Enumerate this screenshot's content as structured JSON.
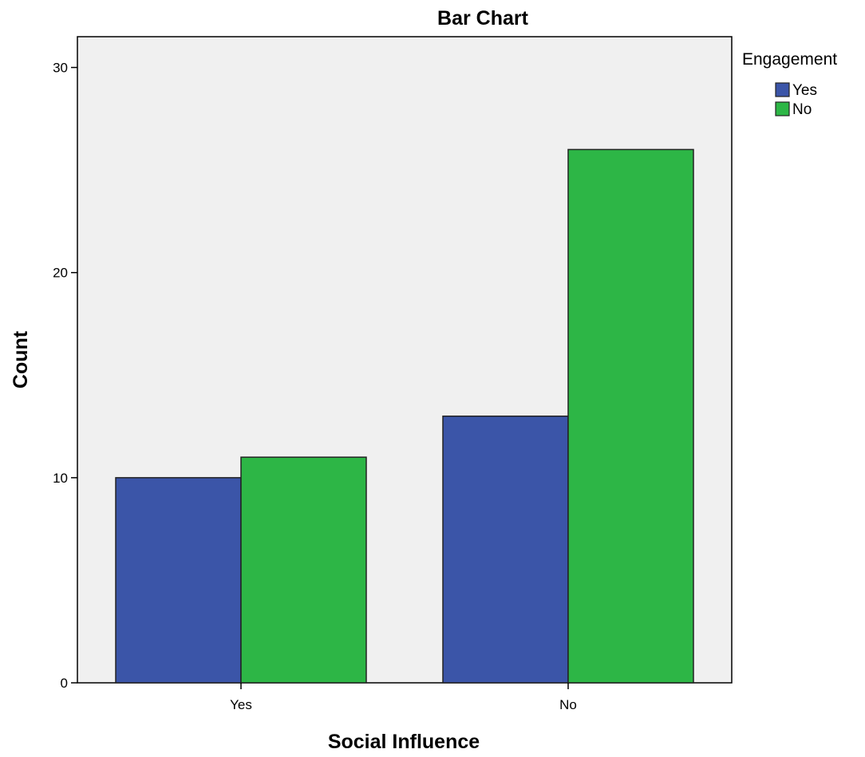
{
  "chart_data": {
    "type": "bar",
    "title": "Bar Chart",
    "xlabel": "Social Influence",
    "ylabel": "Count",
    "categories": [
      "Yes",
      "No"
    ],
    "series": [
      {
        "name": "Yes",
        "values": [
          10,
          13
        ],
        "color": "#3b55a8"
      },
      {
        "name": "No",
        "values": [
          11,
          26
        ],
        "color": "#2db646"
      }
    ],
    "ylim": [
      0,
      31.5
    ],
    "yticks": [
      0,
      10,
      20,
      30
    ],
    "grid": false,
    "legend": {
      "title": "Engagement",
      "placement": "top-right"
    },
    "plot_background": "#f0f0f0"
  }
}
